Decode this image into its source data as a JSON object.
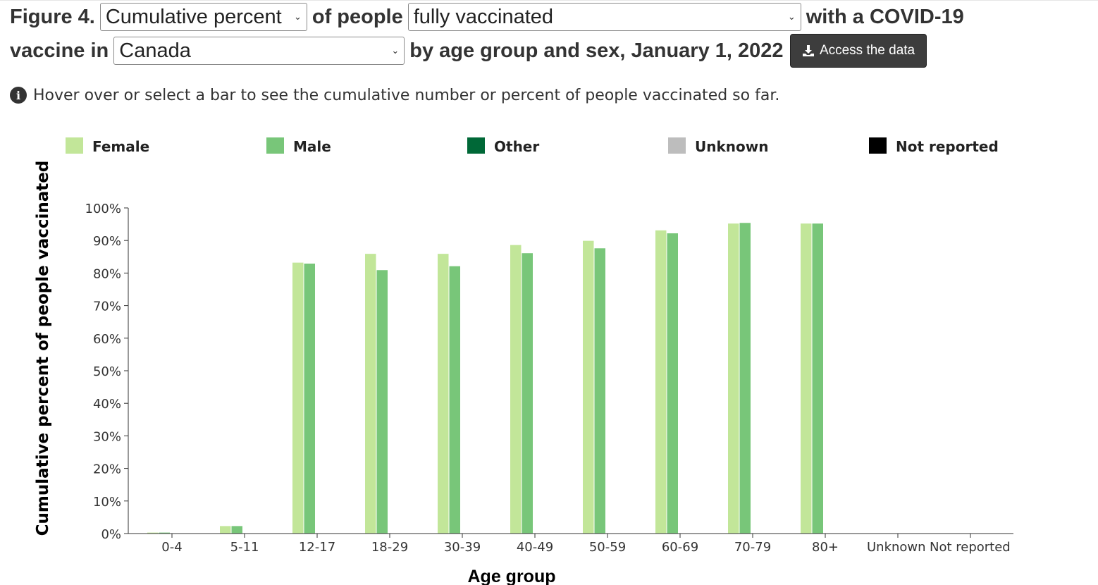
{
  "header": {
    "figure_label": "Figure 4.",
    "measure_select": {
      "value": "Cumulative percent"
    },
    "of_people_text": "of people",
    "status_select": {
      "value": "fully vaccinated"
    },
    "with_text": "with a COVID-19",
    "vaccine_in_text": "vaccine in",
    "region_select": {
      "value": "Canada"
    },
    "by_text": "by age group and sex, January 1, 2022",
    "access_button_label": "Access the data",
    "chevron_icon": "chevron-down-icon",
    "download_icon": "download-icon"
  },
  "hint": {
    "icon": "info-icon",
    "text": "Hover over or select a bar to see the cumulative number or percent of people vaccinated so far."
  },
  "chart_data": {
    "type": "bar",
    "title": "",
    "xlabel": "Age group",
    "ylabel": "Cumulative percent of people vaccinated",
    "ylim": [
      0,
      100
    ],
    "y_ticks": [
      0,
      10,
      20,
      30,
      40,
      50,
      60,
      70,
      80,
      90,
      100
    ],
    "y_tick_format": "%",
    "grid": false,
    "legend_position": "top",
    "categories": [
      "0-4",
      "5-11",
      "12-17",
      "18-29",
      "30-39",
      "40-49",
      "50-59",
      "60-69",
      "70-79",
      "80+",
      "Unknown",
      "Not reported"
    ],
    "series": [
      {
        "name": "Female",
        "color": "#c2e699",
        "values": [
          0.3,
          2.3,
          83.2,
          85.9,
          85.9,
          88.6,
          89.9,
          93.1,
          95.2,
          95.2,
          null,
          null
        ]
      },
      {
        "name": "Male",
        "color": "#78c679",
        "values": [
          0.3,
          2.3,
          82.9,
          80.9,
          82.1,
          86.1,
          87.6,
          92.2,
          95.4,
          95.2,
          null,
          null
        ]
      },
      {
        "name": "Other",
        "color": "#006837",
        "values": [
          null,
          null,
          null,
          null,
          null,
          null,
          null,
          null,
          null,
          null,
          null,
          null
        ]
      },
      {
        "name": "Unknown",
        "color": "#bdbdbd",
        "values": [
          null,
          null,
          null,
          null,
          null,
          null,
          null,
          null,
          null,
          null,
          null,
          null
        ]
      },
      {
        "name": "Not reported",
        "color": "#000000",
        "values": [
          null,
          null,
          null,
          null,
          null,
          null,
          null,
          null,
          null,
          null,
          null,
          null
        ]
      }
    ]
  }
}
